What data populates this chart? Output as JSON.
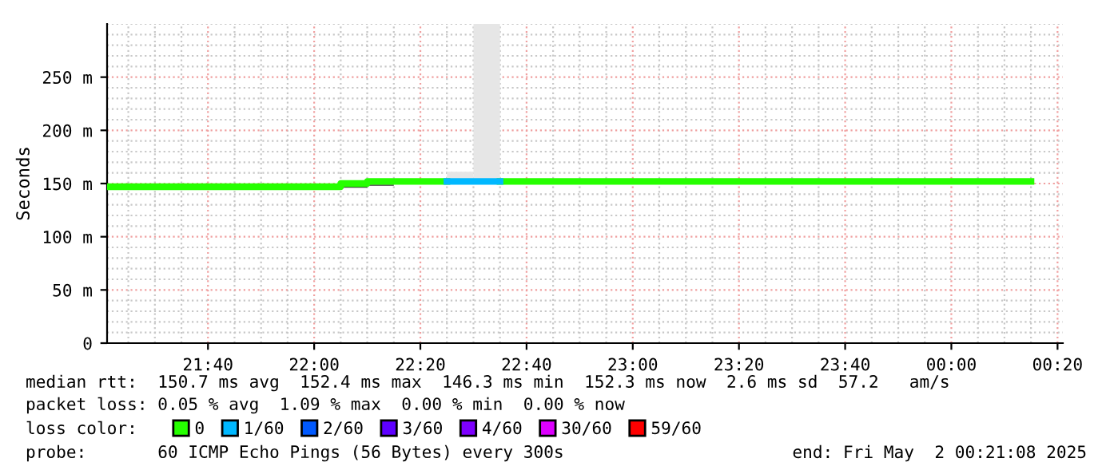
{
  "chart_data": {
    "type": "step",
    "ylabel": "Seconds",
    "x": [
      "2025-05-01T21:21",
      "2025-05-01T22:05",
      "2025-05-01T22:10",
      "2025-05-01T22:25",
      "2025-05-01T22:35",
      "2025-05-02T00:15"
    ],
    "series": [
      {
        "type": "bar",
        "x": [
          "2025-05-01T22:07:30",
          "2025-05-01T22:12:30",
          "2025-05-01T22:27:30",
          "2025-05-01T22:32:30"
        ],
        "base": [
          146,
          148,
          150,
          150
        ],
        "values": [
          1,
          1,
          11,
          150
        ],
        "colors": [
          "#333333",
          "#333333",
          "#e6e6e6",
          "#e6e6e6"
        ]
      },
      {
        "name": "0",
        "color": "#26ff00",
        "values": [
          147,
          150,
          152,
          null,
          152,
          152
        ]
      },
      {
        "name": "1/60",
        "color": "#00b8ff",
        "x": [
          "2025-05-01T22:25",
          "2025-05-01T22:35"
        ],
        "values": [
          152,
          152
        ]
      },
      {
        "name": "2/60",
        "color": "#0059ff",
        "values": [
          null,
          null,
          null,
          null,
          null,
          null
        ]
      },
      {
        "name": "3/60",
        "color": "#5e00ff",
        "values": [
          null,
          null,
          null,
          null,
          null,
          null
        ]
      },
      {
        "name": "4/60",
        "color": "#7e00ff",
        "values": [
          null,
          null,
          null,
          null,
          null,
          null
        ]
      },
      {
        "name": "30/60",
        "color": "#dd00ff",
        "values": [
          null,
          null,
          null,
          null,
          null,
          null
        ]
      },
      {
        "name": "59/60",
        "color": "#ff0000",
        "values": [
          null,
          null,
          null,
          null,
          null,
          null
        ]
      }
    ],
    "xlim": [
      "2025-05-01T21:21",
      "2025-05-02T00:21"
    ],
    "xticks": [
      {
        "value": "2025-05-01T21:40",
        "label": "21:40"
      },
      {
        "value": "2025-05-01T22:00",
        "label": "22:00"
      },
      {
        "value": "2025-05-01T22:20",
        "label": "22:20"
      },
      {
        "value": "2025-05-01T22:40",
        "label": "22:40"
      },
      {
        "value": "2025-05-01T23:00",
        "label": "23:00"
      },
      {
        "value": "2025-05-01T23:20",
        "label": "23:20"
      },
      {
        "value": "2025-05-01T23:40",
        "label": "23:40"
      },
      {
        "value": "2025-05-02T00:00",
        "label": "00:00"
      },
      {
        "value": "2025-05-02T00:20",
        "label": "00:20"
      }
    ],
    "ylim": [
      0,
      300
    ],
    "yticks": [
      0,
      {
        "value": 50,
        "label": "50 m"
      },
      {
        "value": 100,
        "label": "100 m"
      },
      {
        "value": 150,
        "label": "150 m"
      },
      {
        "value": 200,
        "label": "200 m"
      },
      {
        "value": 250,
        "label": "250 m"
      }
    ],
    "grid": true,
    "legend": "bottom",
    "legend_title": "loss color:",
    "annotations": [
      "median rtt:  150.7 ms avg  152.4 ms max  146.3 ms min  152.3 ms now  2.6 ms sd  57.2   am/s",
      "packet loss: 0.05 % avg  1.09 % max  0.00 % min  0.00 % now",
      "probe:       60 ICMP Echo Pings (56 Bytes) every 300s",
      "end: Fri May  2 00:21:08 2025"
    ]
  }
}
